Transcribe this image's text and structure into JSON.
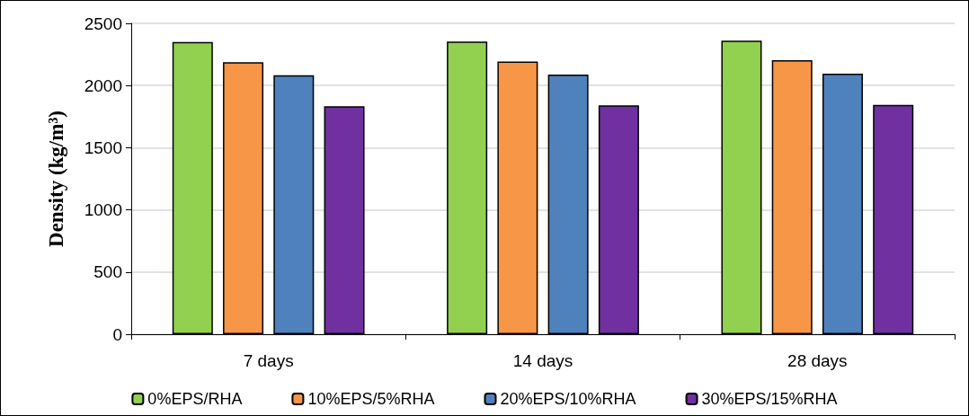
{
  "chart_data": {
    "type": "bar",
    "ylabel": "Density (kg/m³)",
    "categories": [
      "7 days",
      "14 days",
      "28 days"
    ],
    "series": [
      {
        "name": "0%EPS/RHA",
        "color": "#92d050",
        "values": [
          2350,
          2354,
          2361
        ]
      },
      {
        "name": "10%EPS/5%RHA",
        "color": "#f79646",
        "values": [
          2188,
          2193,
          2204
        ]
      },
      {
        "name": "20%EPS/10%RHA",
        "color": "#4f81bd",
        "values": [
          2083,
          2088,
          2095
        ]
      },
      {
        "name": "30%EPS/15%RHA",
        "color": "#7030a0",
        "values": [
          1833,
          1840,
          1845
        ]
      }
    ],
    "ylim": [
      0,
      2500
    ],
    "yticks": [
      0,
      500,
      1000,
      1500,
      2000,
      2500
    ],
    "grid": "y",
    "legend": "bottom"
  }
}
